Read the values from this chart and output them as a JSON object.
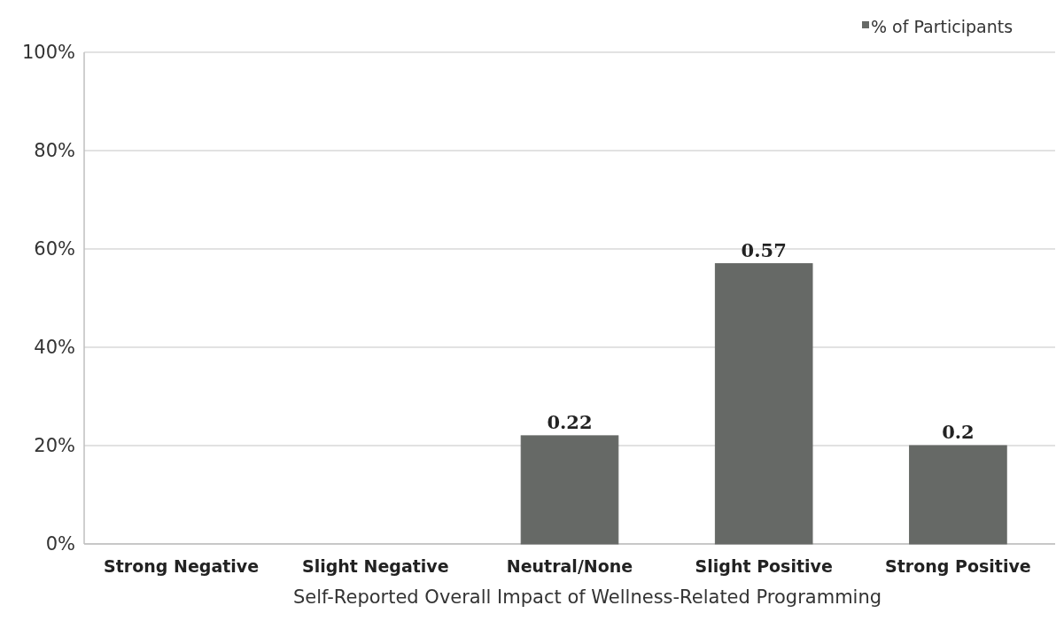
{
  "chart_data": {
    "type": "bar",
    "xlabel": "Self-Reported Overall Impact of Wellness-Related Programming",
    "categories": [
      "Strong Negative",
      "Slight Negative",
      "Neutral/None",
      "Slight Positive",
      "Strong Positive"
    ],
    "series": [
      {
        "name": "% of Participants",
        "color": "#666966",
        "values": [
          0,
          0,
          0.22,
          0.57,
          0.2
        ],
        "value_labels": [
          null,
          null,
          "0.22",
          "0.57",
          "0.2"
        ]
      }
    ],
    "ylim": [
      0,
      1
    ],
    "yticks": [
      {
        "value": 0,
        "label": "0%"
      },
      {
        "value": 0.2,
        "label": "20%"
      },
      {
        "value": 0.4,
        "label": "40%"
      },
      {
        "value": 0.6,
        "label": "60%"
      },
      {
        "value": 0.8,
        "label": "80%"
      },
      {
        "value": 1,
        "label": "100%"
      }
    ],
    "grid": "y",
    "legend": "top right"
  }
}
